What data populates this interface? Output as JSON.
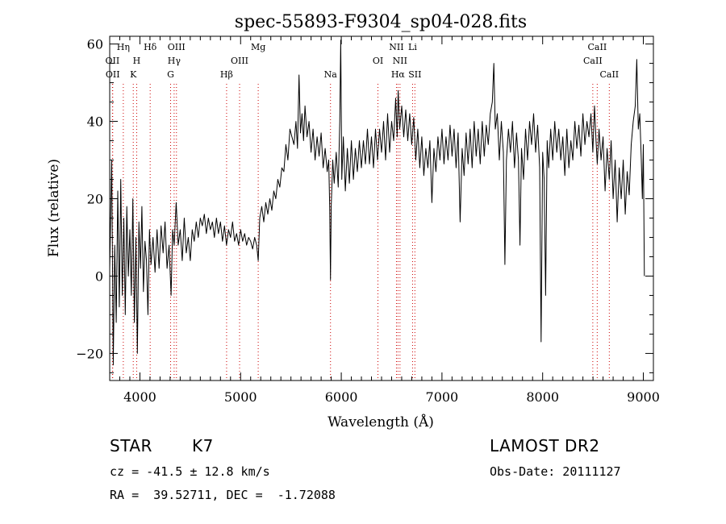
{
  "chart_data": {
    "type": "line",
    "title": "spec-55893-F9304_sp04-028.fits",
    "xlabel": "Wavelength (Å)",
    "ylabel": "Flux (relative)",
    "xlim": [
      3700,
      9100
    ],
    "ylim": [
      -27,
      62
    ],
    "xticks": [
      4000,
      5000,
      6000,
      7000,
      8000,
      9000
    ],
    "yticks": [
      -20,
      0,
      20,
      40,
      60
    ],
    "line_color": "#000000",
    "marker_color": "#cc0000",
    "grid": false,
    "line_ids": [
      {
        "label": "OII",
        "x": 3727,
        "row": 2
      },
      {
        "label": "OII",
        "x": 3730,
        "row": 3
      },
      {
        "label": "Hη",
        "x": 3835,
        "row": 1
      },
      {
        "label": "H",
        "x": 3968,
        "row": 2
      },
      {
        "label": "K",
        "x": 3934,
        "row": 3
      },
      {
        "label": "Hδ",
        "x": 4102,
        "row": 1
      },
      {
        "label": "OIII",
        "x": 4363,
        "row": 1
      },
      {
        "label": "Hγ",
        "x": 4340,
        "row": 2
      },
      {
        "label": "G",
        "x": 4305,
        "row": 3
      },
      {
        "label": "Hβ",
        "x": 4861,
        "row": 3
      },
      {
        "label": "OIII",
        "x": 4990,
        "row": 2
      },
      {
        "label": "Mg",
        "x": 5175,
        "row": 1
      },
      {
        "label": "Na",
        "x": 5893,
        "row": 3
      },
      {
        "label": "OI",
        "x": 6364,
        "row": 2
      },
      {
        "label": "NII",
        "x": 6548,
        "row": 1
      },
      {
        "label": "NII",
        "x": 6583,
        "row": 2
      },
      {
        "label": "Hα",
        "x": 6563,
        "row": 3
      },
      {
        "label": "Li",
        "x": 6708,
        "row": 1
      },
      {
        "label": "SII",
        "x": 6731,
        "row": 3
      },
      {
        "label": "CaII",
        "x": 8498,
        "row": 2
      },
      {
        "label": "CaII",
        "x": 8542,
        "row": 1
      },
      {
        "label": "CaII",
        "x": 8662,
        "row": 3
      }
    ],
    "series": [
      {
        "points": [
          [
            3700,
            2
          ],
          [
            3720,
            30
          ],
          [
            3735,
            -23
          ],
          [
            3750,
            8
          ],
          [
            3765,
            -12
          ],
          [
            3780,
            22
          ],
          [
            3795,
            -8
          ],
          [
            3810,
            25
          ],
          [
            3825,
            -5
          ],
          [
            3840,
            15
          ],
          [
            3855,
            -10
          ],
          [
            3870,
            18
          ],
          [
            3885,
            0
          ],
          [
            3900,
            12
          ],
          [
            3915,
            -5
          ],
          [
            3930,
            20
          ],
          [
            3945,
            -12
          ],
          [
            3960,
            10
          ],
          [
            3975,
            -20
          ],
          [
            3990,
            14
          ],
          [
            4005,
            2
          ],
          [
            4020,
            18
          ],
          [
            4035,
            -4
          ],
          [
            4050,
            9
          ],
          [
            4065,
            4
          ],
          [
            4080,
            -10
          ],
          [
            4095,
            12
          ],
          [
            4110,
            3
          ],
          [
            4130,
            10
          ],
          [
            4150,
            1
          ],
          [
            4170,
            12
          ],
          [
            4190,
            2
          ],
          [
            4210,
            13
          ],
          [
            4230,
            6
          ],
          [
            4250,
            14
          ],
          [
            4270,
            2
          ],
          [
            4290,
            8
          ],
          [
            4310,
            -5
          ],
          [
            4325,
            12
          ],
          [
            4340,
            8
          ],
          [
            4360,
            19
          ],
          [
            4380,
            8
          ],
          [
            4400,
            12
          ],
          [
            4420,
            4
          ],
          [
            4440,
            15
          ],
          [
            4460,
            6
          ],
          [
            4480,
            10
          ],
          [
            4500,
            4
          ],
          [
            4520,
            12
          ],
          [
            4540,
            9
          ],
          [
            4560,
            14
          ],
          [
            4580,
            10
          ],
          [
            4600,
            15
          ],
          [
            4620,
            13
          ],
          [
            4640,
            16
          ],
          [
            4660,
            11
          ],
          [
            4680,
            15
          ],
          [
            4700,
            12
          ],
          [
            4720,
            14
          ],
          [
            4740,
            10
          ],
          [
            4760,
            15
          ],
          [
            4780,
            11
          ],
          [
            4800,
            14
          ],
          [
            4820,
            9
          ],
          [
            4840,
            13
          ],
          [
            4860,
            8
          ],
          [
            4880,
            12
          ],
          [
            4900,
            10
          ],
          [
            4920,
            14
          ],
          [
            4940,
            9
          ],
          [
            4960,
            11
          ],
          [
            4980,
            8
          ],
          [
            5000,
            12
          ],
          [
            5020,
            9
          ],
          [
            5040,
            11
          ],
          [
            5060,
            8
          ],
          [
            5080,
            10
          ],
          [
            5100,
            9
          ],
          [
            5120,
            7
          ],
          [
            5140,
            10
          ],
          [
            5160,
            8
          ],
          [
            5175,
            4
          ],
          [
            5190,
            15
          ],
          [
            5210,
            18
          ],
          [
            5230,
            14
          ],
          [
            5250,
            19
          ],
          [
            5270,
            16
          ],
          [
            5290,
            20
          ],
          [
            5310,
            17
          ],
          [
            5330,
            22
          ],
          [
            5350,
            20
          ],
          [
            5370,
            25
          ],
          [
            5390,
            23
          ],
          [
            5410,
            28
          ],
          [
            5430,
            27
          ],
          [
            5450,
            34
          ],
          [
            5470,
            30
          ],
          [
            5490,
            38
          ],
          [
            5510,
            36
          ],
          [
            5530,
            34
          ],
          [
            5550,
            40
          ],
          [
            5565,
            33
          ],
          [
            5580,
            52
          ],
          [
            5595,
            37
          ],
          [
            5610,
            42
          ],
          [
            5625,
            35
          ],
          [
            5640,
            44
          ],
          [
            5660,
            36
          ],
          [
            5680,
            40
          ],
          [
            5700,
            32
          ],
          [
            5720,
            38
          ],
          [
            5740,
            30
          ],
          [
            5760,
            36
          ],
          [
            5780,
            31
          ],
          [
            5800,
            37
          ],
          [
            5820,
            28
          ],
          [
            5840,
            33
          ],
          [
            5860,
            27
          ],
          [
            5875,
            30
          ],
          [
            5885,
            18
          ],
          [
            5893,
            -1
          ],
          [
            5900,
            18
          ],
          [
            5915,
            30
          ],
          [
            5930,
            24
          ],
          [
            5950,
            32
          ],
          [
            5970,
            23
          ],
          [
            5985,
            40
          ],
          [
            5995,
            61
          ],
          [
            6005,
            25
          ],
          [
            6020,
            36
          ],
          [
            6040,
            22
          ],
          [
            6060,
            33
          ],
          [
            6080,
            24
          ],
          [
            6100,
            35
          ],
          [
            6120,
            25
          ],
          [
            6140,
            33
          ],
          [
            6160,
            27
          ],
          [
            6180,
            35
          ],
          [
            6200,
            28
          ],
          [
            6220,
            35
          ],
          [
            6240,
            29
          ],
          [
            6260,
            38
          ],
          [
            6280,
            29
          ],
          [
            6300,
            36
          ],
          [
            6320,
            28
          ],
          [
            6340,
            38
          ],
          [
            6360,
            30
          ],
          [
            6380,
            38
          ],
          [
            6400,
            32
          ],
          [
            6420,
            40
          ],
          [
            6440,
            30
          ],
          [
            6460,
            42
          ],
          [
            6480,
            32
          ],
          [
            6500,
            40
          ],
          [
            6520,
            35
          ],
          [
            6540,
            46
          ],
          [
            6555,
            36
          ],
          [
            6565,
            48
          ],
          [
            6580,
            38
          ],
          [
            6600,
            44
          ],
          [
            6620,
            36
          ],
          [
            6640,
            43
          ],
          [
            6660,
            35
          ],
          [
            6680,
            42
          ],
          [
            6700,
            34
          ],
          [
            6720,
            41
          ],
          [
            6740,
            30
          ],
          [
            6760,
            38
          ],
          [
            6780,
            28
          ],
          [
            6800,
            36
          ],
          [
            6820,
            26
          ],
          [
            6840,
            33
          ],
          [
            6860,
            28
          ],
          [
            6880,
            35
          ],
          [
            6900,
            19
          ],
          [
            6920,
            33
          ],
          [
            6940,
            27
          ],
          [
            6960,
            36
          ],
          [
            6980,
            30
          ],
          [
            7000,
            38
          ],
          [
            7020,
            29
          ],
          [
            7040,
            36
          ],
          [
            7060,
            30
          ],
          [
            7080,
            39
          ],
          [
            7100,
            31
          ],
          [
            7120,
            38
          ],
          [
            7140,
            28
          ],
          [
            7160,
            37
          ],
          [
            7180,
            14
          ],
          [
            7200,
            33
          ],
          [
            7220,
            26
          ],
          [
            7240,
            37
          ],
          [
            7260,
            29
          ],
          [
            7280,
            38
          ],
          [
            7300,
            28
          ],
          [
            7320,
            40
          ],
          [
            7340,
            31
          ],
          [
            7360,
            38
          ],
          [
            7380,
            29
          ],
          [
            7400,
            40
          ],
          [
            7420,
            31
          ],
          [
            7440,
            39
          ],
          [
            7460,
            34
          ],
          [
            7480,
            42
          ],
          [
            7500,
            45
          ],
          [
            7515,
            55
          ],
          [
            7530,
            38
          ],
          [
            7550,
            42
          ],
          [
            7570,
            30
          ],
          [
            7590,
            40
          ],
          [
            7610,
            32
          ],
          [
            7625,
            3
          ],
          [
            7640,
            30
          ],
          [
            7660,
            38
          ],
          [
            7680,
            32
          ],
          [
            7700,
            40
          ],
          [
            7720,
            28
          ],
          [
            7740,
            37
          ],
          [
            7760,
            30
          ],
          [
            7775,
            8
          ],
          [
            7790,
            33
          ],
          [
            7810,
            25
          ],
          [
            7830,
            38
          ],
          [
            7850,
            30
          ],
          [
            7870,
            40
          ],
          [
            7890,
            34
          ],
          [
            7910,
            42
          ],
          [
            7930,
            32
          ],
          [
            7950,
            39
          ],
          [
            7970,
            28
          ],
          [
            7985,
            -17
          ],
          [
            8000,
            32
          ],
          [
            8015,
            25
          ],
          [
            8030,
            -5
          ],
          [
            8045,
            35
          ],
          [
            8060,
            28
          ],
          [
            8080,
            38
          ],
          [
            8100,
            30
          ],
          [
            8120,
            40
          ],
          [
            8140,
            32
          ],
          [
            8160,
            38
          ],
          [
            8180,
            30
          ],
          [
            8200,
            36
          ],
          [
            8220,
            26
          ],
          [
            8240,
            38
          ],
          [
            8260,
            28
          ],
          [
            8280,
            35
          ],
          [
            8300,
            30
          ],
          [
            8320,
            40
          ],
          [
            8340,
            33
          ],
          [
            8360,
            39
          ],
          [
            8380,
            31
          ],
          [
            8400,
            42
          ],
          [
            8420,
            34
          ],
          [
            8440,
            40
          ],
          [
            8460,
            36
          ],
          [
            8480,
            42
          ],
          [
            8498,
            32
          ],
          [
            8515,
            44
          ],
          [
            8530,
            35
          ],
          [
            8542,
            29
          ],
          [
            8560,
            38
          ],
          [
            8580,
            30
          ],
          [
            8600,
            36
          ],
          [
            8620,
            22
          ],
          [
            8640,
            33
          ],
          [
            8662,
            25
          ],
          [
            8680,
            35
          ],
          [
            8700,
            20
          ],
          [
            8720,
            30
          ],
          [
            8740,
            14
          ],
          [
            8760,
            28
          ],
          [
            8780,
            20
          ],
          [
            8800,
            30
          ],
          [
            8820,
            16
          ],
          [
            8840,
            27
          ],
          [
            8860,
            21
          ],
          [
            8880,
            34
          ],
          [
            8900,
            40
          ],
          [
            8920,
            44
          ],
          [
            8935,
            56
          ],
          [
            8950,
            38
          ],
          [
            8965,
            42
          ],
          [
            8980,
            30
          ],
          [
            8990,
            20
          ],
          [
            9000,
            34
          ],
          [
            9010,
            0
          ]
        ]
      }
    ]
  },
  "info": {
    "object_class": "STAR",
    "subclass": "K7",
    "survey": "LAMOST DR2",
    "redshift": "cz = -41.5 ± 12.8 km/s",
    "obs_date": "Obs-Date: 20111127",
    "coords": "RA =  39.52711, DEC =  -1.72088"
  }
}
